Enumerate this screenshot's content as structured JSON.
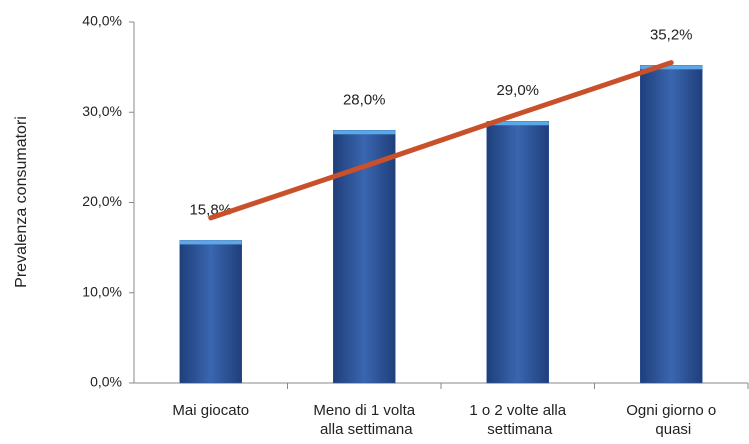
{
  "chart_data": {
    "type": "bar",
    "y_label": "Prevalenza consumatori",
    "categories": [
      "Mai giocato",
      "Meno di 1 volta alla settimana",
      "1 o 2 volte alla settimana",
      "Ogni giorno o quasi"
    ],
    "values": [
      15.8,
      28.0,
      29.0,
      35.2
    ],
    "value_labels": [
      "15,8%",
      "28,0%",
      "29,0%",
      "35,2%"
    ],
    "color": "#2f569c",
    "trend_line": {
      "color": "#c8502a",
      "values": [
        18.3,
        24.0,
        29.8,
        35.5
      ]
    },
    "ylim": [
      0,
      40
    ],
    "yticks": [
      {
        "value": 0,
        "label": "0,0%"
      },
      {
        "value": 10,
        "label": "10,0%"
      },
      {
        "value": 20,
        "label": "20,0%"
      },
      {
        "value": 30,
        "label": "30,0%"
      },
      {
        "value": 40,
        "label": "40,0%"
      }
    ],
    "grid": false
  }
}
